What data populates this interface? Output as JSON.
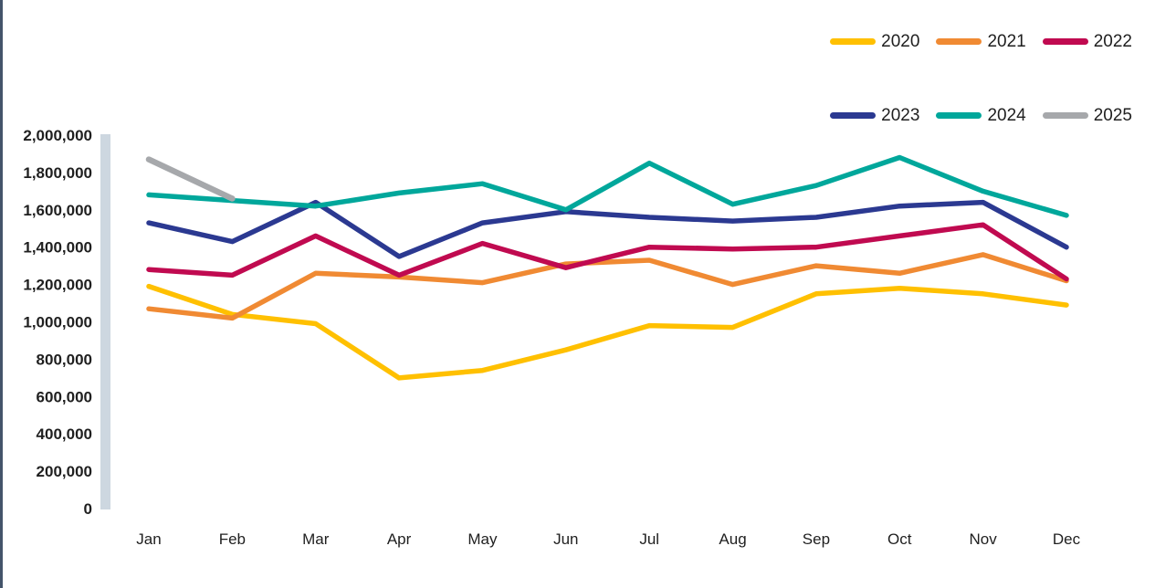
{
  "colors": {
    "window_left_border": "#44546A",
    "axis_bar": "#CDD7E0",
    "text": "#1f1f1f"
  },
  "chart_data": {
    "type": "line",
    "title": "",
    "xlabel": "",
    "ylabel": "",
    "grid": false,
    "legend_position": "top-right",
    "legend_rows_of": 3,
    "ylim": [
      0,
      2000000
    ],
    "ytick_values": [
      0,
      200000,
      400000,
      600000,
      800000,
      1000000,
      1200000,
      1400000,
      1600000,
      1800000,
      2000000
    ],
    "ytick_labels": [
      "0",
      "200,000",
      "400,000",
      "600,000",
      "800,000",
      "1,000,000",
      "1,200,000",
      "1,400,000",
      "1,600,000",
      "1,800,000",
      "2,000,000"
    ],
    "categories": [
      "Jan",
      "Feb",
      "Mar",
      "Apr",
      "May",
      "Jun",
      "Jul",
      "Aug",
      "Sep",
      "Oct",
      "Nov",
      "Dec"
    ],
    "series": [
      {
        "name": "2020",
        "color": "#FFC000",
        "values": [
          1190000,
          1040000,
          990000,
          700000,
          740000,
          850000,
          980000,
          970000,
          1150000,
          1180000,
          1150000,
          1090000
        ]
      },
      {
        "name": "2021",
        "color": "#F08A33",
        "values": [
          1070000,
          1020000,
          1260000,
          1240000,
          1210000,
          1310000,
          1330000,
          1200000,
          1300000,
          1260000,
          1360000,
          1220000
        ]
      },
      {
        "name": "2022",
        "color": "#C00A50",
        "values": [
          1280000,
          1250000,
          1460000,
          1250000,
          1420000,
          1290000,
          1400000,
          1390000,
          1400000,
          1460000,
          1520000,
          1230000
        ]
      },
      {
        "name": "2023",
        "color": "#2B3991",
        "values": [
          1530000,
          1430000,
          1640000,
          1350000,
          1530000,
          1590000,
          1560000,
          1540000,
          1560000,
          1620000,
          1640000,
          1400000
        ]
      },
      {
        "name": "2024",
        "color": "#00A79B",
        "values": [
          1680000,
          1650000,
          1620000,
          1690000,
          1740000,
          1600000,
          1850000,
          1630000,
          1730000,
          1880000,
          1700000,
          1570000
        ]
      },
      {
        "name": "2025",
        "color": "#A6A8AB",
        "values": [
          1870000,
          1660000,
          null,
          null,
          null,
          null,
          null,
          null,
          null,
          null,
          null,
          null
        ]
      }
    ]
  }
}
